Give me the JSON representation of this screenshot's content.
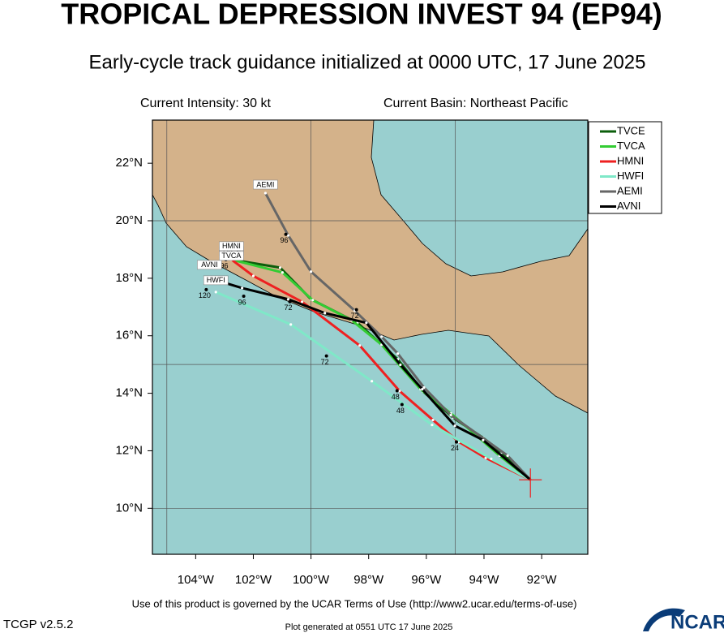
{
  "chart_data": {
    "type": "track",
    "title": "TROPICAL DEPRESSION INVEST 94 (EP94)",
    "subtitle": "Early-cycle track guidance initialized at 0000 UTC, 17 June 2025",
    "intensity": "Current Intensity: 30 kt",
    "basin": "Current Basin: Northeast Pacific",
    "footer": "Use of this product is governed by the UCAR Terms of Use (http://www2.ucar.edu/terms-of-use)",
    "version": "TCGP v2.5.2",
    "generated": "Plot generated at 0551 UTC   17 June 2025",
    "logo": "NCAR",
    "xlim": [
      -105.5,
      -90.4
    ],
    "ylim": [
      8.4,
      23.5
    ],
    "xticks": [
      {
        "value": -104,
        "label": "104°W"
      },
      {
        "value": -102,
        "label": "102°W"
      },
      {
        "value": -100,
        "label": "100°W"
      },
      {
        "value": -98,
        "label": "98°W"
      },
      {
        "value": -96,
        "label": "96°W"
      },
      {
        "value": -94,
        "label": "94°W"
      },
      {
        "value": -92,
        "label": "92°W"
      }
    ],
    "yticks": [
      {
        "value": 10,
        "label": "10°N"
      },
      {
        "value": 12,
        "label": "12°N"
      },
      {
        "value": 14,
        "label": "14°N"
      },
      {
        "value": 16,
        "label": "16°N"
      },
      {
        "value": 18,
        "label": "18°N"
      },
      {
        "value": 20,
        "label": "20°N"
      },
      {
        "value": 22,
        "label": "22°N"
      }
    ],
    "grid_lons": [
      -105,
      -100,
      -95
    ],
    "grid_lats": [
      10,
      15,
      20
    ],
    "series": [
      {
        "name": "TVCE",
        "color": "#0b5e0b",
        "x": [
          -92.39,
          -93.38,
          -94.03,
          -95.07,
          -96.11,
          -96.99,
          -98.39,
          -100.0,
          -101.07,
          -102.76
        ],
        "values": [
          10.99,
          11.94,
          12.45,
          13.15,
          14.06,
          15.18,
          16.45,
          17.27,
          18.37,
          18.65
        ]
      },
      {
        "name": "TVCA",
        "color": "#33cc33",
        "x": [
          -92.39,
          -93.46,
          -94.17,
          -95.15,
          -96.2,
          -97.55,
          -98.59,
          -99.94,
          -100.99,
          -102.76
        ],
        "values": [
          10.99,
          11.83,
          12.45,
          13.3,
          14.14,
          15.69,
          16.54,
          17.24,
          18.2,
          18.65
        ]
      },
      {
        "name": "HMNI",
        "color": "#ee2020",
        "x": [
          -92.39,
          -93.94,
          -94.87,
          -95.77,
          -96.93,
          -98.31,
          -100.31,
          -102.0,
          -102.76
        ],
        "values": [
          10.99,
          11.75,
          12.31,
          13.07,
          14.08,
          15.66,
          17.18,
          18.08,
          18.65
        ]
      },
      {
        "name": "HWFI",
        "color": "#7fe8c8",
        "x": [
          -92.39,
          -93.75,
          -95.8,
          -97.89,
          -100.7,
          -103.3
        ],
        "values": [
          10.99,
          11.72,
          12.9,
          14.42,
          16.39,
          17.52
        ]
      },
      {
        "name": "AEMI",
        "color": "#666666",
        "x": [
          -92.39,
          -93.18,
          -95.15,
          -96.08,
          -96.99,
          -97.55,
          -98.48,
          -100.0,
          -100.79,
          -101.58
        ],
        "values": [
          10.99,
          11.83,
          13.24,
          14.2,
          15.38,
          15.97,
          16.87,
          18.23,
          19.49,
          20.96
        ]
      },
      {
        "name": "AVNI",
        "color": "#000000",
        "x": [
          -92.39,
          -94.03,
          -95.01,
          -96.14,
          -96.9,
          -98.08,
          -99.52,
          -100.79,
          -102.39,
          -103.52
        ],
        "values": [
          10.99,
          12.37,
          12.87,
          14.14,
          14.99,
          16.45,
          16.79,
          17.27,
          17.66,
          18.0
        ]
      }
    ],
    "hour_labels": [
      {
        "text": "96",
        "x": -100.93,
        "y": 19.3
      },
      {
        "text": "72",
        "x": -100.79,
        "y": 16.96
      },
      {
        "text": "72",
        "x": -99.52,
        "y": 15.07
      },
      {
        "text": "96",
        "x": -102.39,
        "y": 17.15
      },
      {
        "text": "120",
        "x": -103.69,
        "y": 17.38
      },
      {
        "text": "48",
        "x": -97.07,
        "y": 13.86
      },
      {
        "text": "48",
        "x": -96.9,
        "y": 13.38
      },
      {
        "text": "24",
        "x": -95.01,
        "y": 12.08
      },
      {
        "text": "72",
        "x": -98.48,
        "y": 16.68
      },
      {
        "text": "96",
        "x": -103.01,
        "y": 18.42
      }
    ]
  }
}
